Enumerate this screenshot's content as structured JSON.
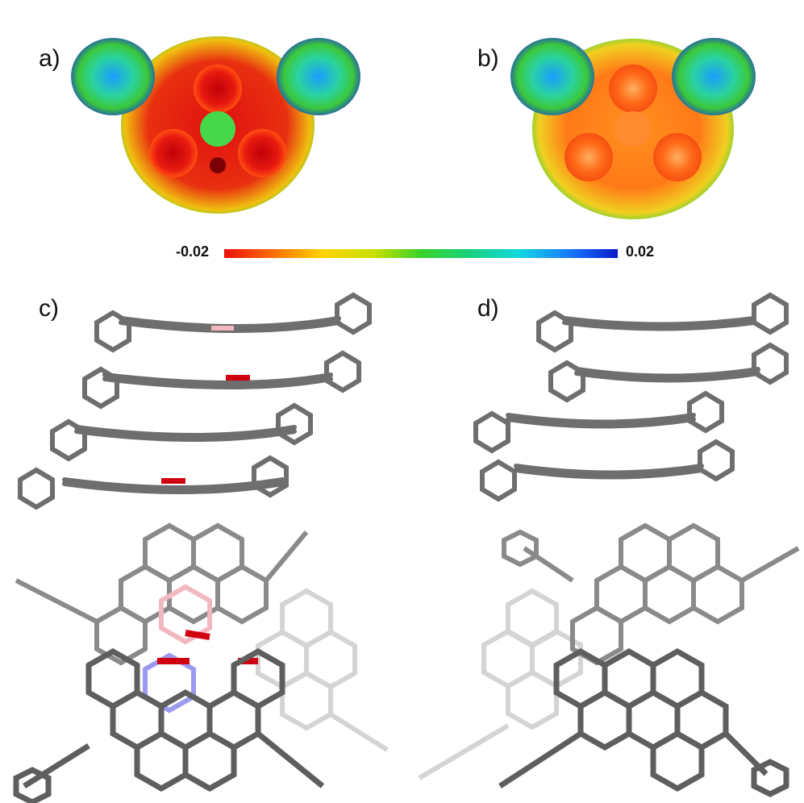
{
  "panels": {
    "a": {
      "label": "a)"
    },
    "b": {
      "label": "b)"
    },
    "c": {
      "label": "c)"
    },
    "d": {
      "label": "d)"
    }
  },
  "color_scale": {
    "min_label": "-0.02",
    "max_label": "0.02",
    "colors": [
      "#e81010",
      "#ffd400",
      "#3ad22a",
      "#14d8e0",
      "#0a1ac8"
    ]
  },
  "colors": {
    "carbon": "#6e6e6e",
    "carbon_light": "#d4d4d4",
    "boron": "#f2b8c0",
    "nitrogen": "#9a9af0",
    "oxygen": "#d00010"
  }
}
